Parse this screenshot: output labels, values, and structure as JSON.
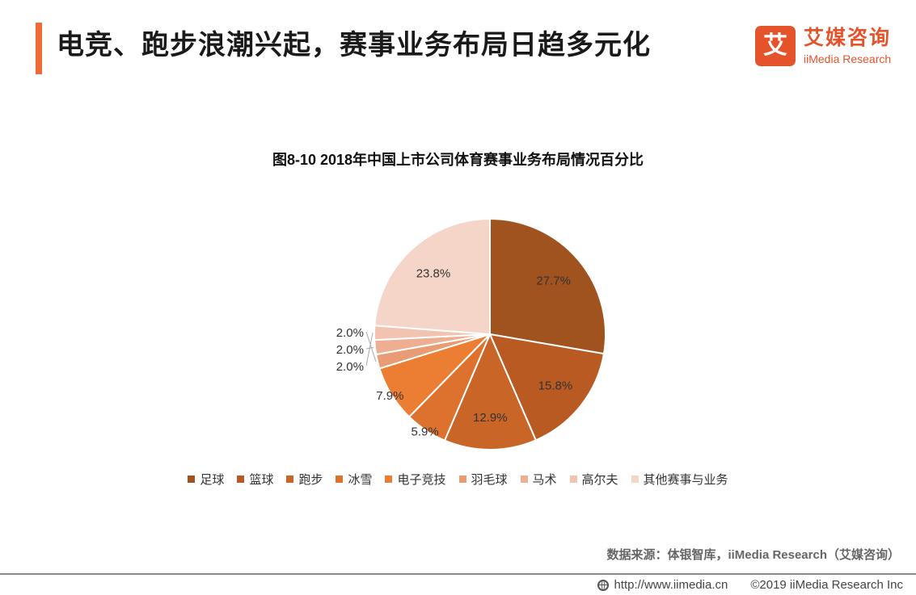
{
  "header": {
    "title": "电竞、跑步浪潮兴起，赛事业务布局日趋多元化"
  },
  "brand": {
    "mark": "艾",
    "name_cn": "艾媒咨询",
    "name_en": "iiMedia Research"
  },
  "chart_data": {
    "type": "pie",
    "title": "图8-10  2018年中国上市公司体育赛事业务布局情况百分比",
    "unit": "%",
    "start_angle": "12 o'clock",
    "direction": "clockwise",
    "legend_position": "bottom",
    "slices": [
      {
        "name": "足球",
        "value": 27.7,
        "label": "27.7%",
        "color": "#a0521f"
      },
      {
        "name": "篮球",
        "value": 15.8,
        "label": "15.8%",
        "color": "#b95a22"
      },
      {
        "name": "跑步",
        "value": 12.9,
        "label": "12.9%",
        "color": "#c96527"
      },
      {
        "name": "冰雪",
        "value": 5.9,
        "label": "5.9%",
        "color": "#dc722d"
      },
      {
        "name": "电子竞技",
        "value": 7.9,
        "label": "7.9%",
        "color": "#ec7e33"
      },
      {
        "name": "羽毛球",
        "value": 2.0,
        "label": "2.0%",
        "color": "#e99b74"
      },
      {
        "name": "马术",
        "value": 2.0,
        "label": "2.0%",
        "color": "#eeae91"
      },
      {
        "name": "高尔夫",
        "value": 2.0,
        "label": "2.0%",
        "color": "#f2c3b0"
      },
      {
        "name": "其他赛事与业务",
        "value": 23.8,
        "label": "23.8%",
        "color": "#f6d5c9"
      }
    ]
  },
  "source": "数据来源：体银智库，iiMedia Research（艾媒咨询）",
  "footer": {
    "url": "http://www.iimedia.cn",
    "copyright": "©2019  iiMedia Research  Inc"
  }
}
